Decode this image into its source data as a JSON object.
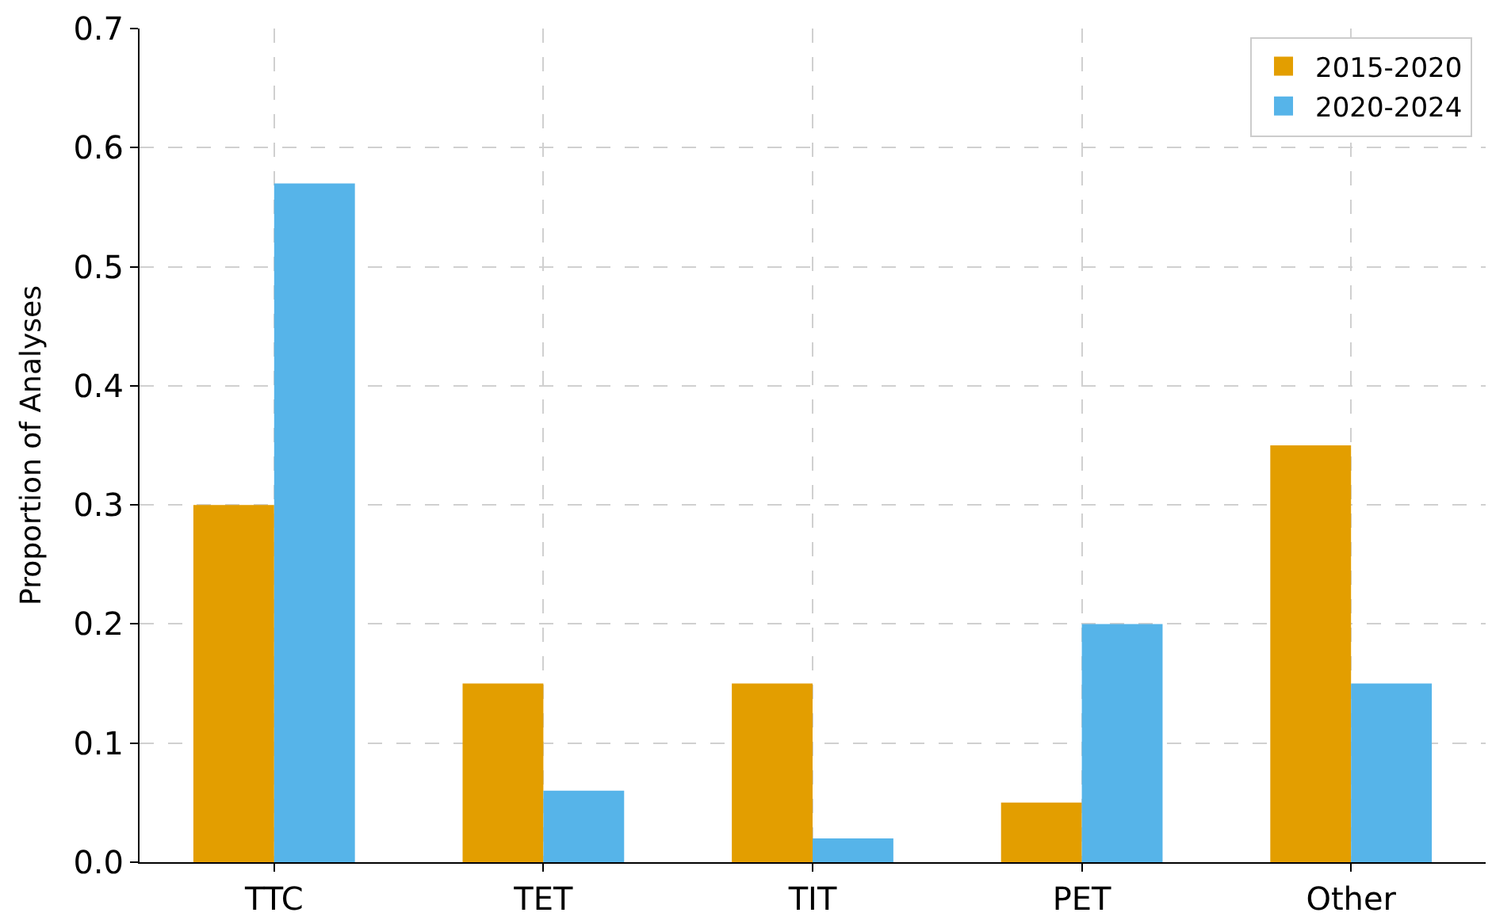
{
  "chart_data": {
    "type": "bar",
    "ylabel": "Proportion of Analyses",
    "categories": [
      "TTC",
      "TET",
      "TIT",
      "PET",
      "Other"
    ],
    "series": [
      {
        "name": "2015-2020",
        "color": "#e39e00",
        "values": [
          0.3,
          0.15,
          0.15,
          0.05,
          0.35
        ]
      },
      {
        "name": "2020-2024",
        "color": "#56b4e9",
        "values": [
          0.57,
          0.06,
          0.02,
          0.2,
          0.15
        ]
      }
    ],
    "ylim": [
      0,
      0.7
    ],
    "yticks": [
      {
        "value": 0,
        "label": "0.0"
      },
      0.1,
      0.2,
      0.3,
      0.4,
      0.5,
      0.6,
      0.7
    ],
    "grid": true,
    "legend": "top right"
  }
}
